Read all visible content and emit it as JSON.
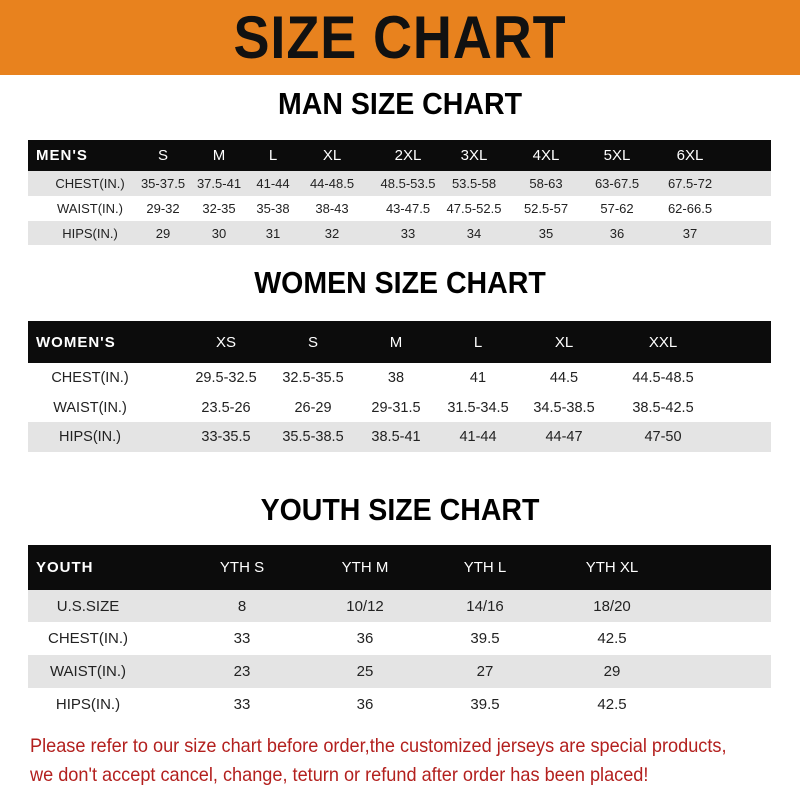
{
  "header": {
    "title": "SIZE CHART"
  },
  "men": {
    "title": "MAN SIZE CHART",
    "header": [
      "MEN'S",
      "S",
      "M",
      "L",
      "XL",
      "2XL",
      "3XL",
      "4XL",
      "5XL",
      "6XL"
    ],
    "rows": [
      [
        "CHEST(IN.)",
        "35-37.5",
        "37.5-41",
        "41-44",
        "44-48.5",
        "48.5-53.5",
        "53.5-58",
        "58-63",
        "63-67.5",
        "67.5-72"
      ],
      [
        "WAIST(IN.)",
        "29-32",
        "32-35",
        "35-38",
        "38-43",
        "43-47.5",
        "47.5-52.5",
        "52.5-57",
        "57-62",
        "62-66.5"
      ],
      [
        "HIPS(IN.)",
        "29",
        "30",
        "31",
        "32",
        "33",
        "34",
        "35",
        "36",
        "37"
      ]
    ]
  },
  "women": {
    "title": "WOMEN SIZE CHART",
    "header": [
      "WOMEN'S",
      "XS",
      "S",
      "M",
      "L",
      "XL",
      "XXL"
    ],
    "rows": [
      [
        "CHEST(IN.)",
        "29.5-32.5",
        "32.5-35.5",
        "38",
        "41",
        "44.5",
        "44.5-48.5"
      ],
      [
        "WAIST(IN.)",
        "23.5-26",
        "26-29",
        "29-31.5",
        "31.5-34.5",
        "34.5-38.5",
        "38.5-42.5"
      ],
      [
        "HIPS(IN.)",
        "33-35.5",
        "35.5-38.5",
        "38.5-41",
        "41-44",
        "44-47",
        "47-50"
      ]
    ]
  },
  "youth": {
    "title": "YOUTH SIZE CHART",
    "header": [
      "YOUTH",
      "YTH S",
      "YTH M",
      "YTH L",
      "YTH XL"
    ],
    "rows": [
      [
        "U.S.SIZE",
        "8",
        "10/12",
        "14/16",
        "18/20"
      ],
      [
        "CHEST(IN.)",
        "33",
        "36",
        "39.5",
        "42.5"
      ],
      [
        "WAIST(IN.)",
        "23",
        "25",
        "27",
        "29"
      ],
      [
        "HIPS(IN.)",
        "33",
        "36",
        "39.5",
        "42.5"
      ]
    ]
  },
  "notice": {
    "line1": "Please refer to our size chart before order,the customized jerseys are special products,",
    "line2": "we don't accept cancel, change, teturn or refund after order has been placed!"
  },
  "colors": {
    "banner": "#e8821e",
    "header_row": "#0c0c0c",
    "notice": "#b3201e"
  }
}
